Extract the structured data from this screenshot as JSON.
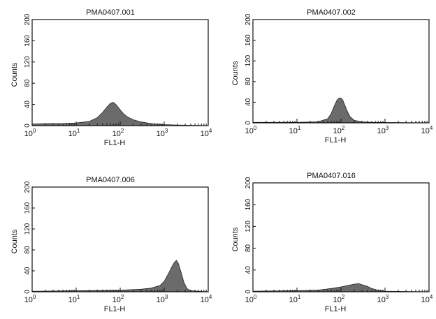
{
  "chart_data": [
    {
      "type": "area",
      "title": "PMA0407.001",
      "xlabel": "FL1-H",
      "ylabel": "Counts",
      "x_scale": "log",
      "xlim": [
        1,
        10000
      ],
      "ylim": [
        0,
        200
      ],
      "x_ticks": [
        {
          "base": "10",
          "exp": "0"
        },
        {
          "base": "10",
          "exp": "1"
        },
        {
          "base": "10",
          "exp": "2"
        },
        {
          "base": "10",
          "exp": "3"
        },
        {
          "base": "10",
          "exp": "4"
        }
      ],
      "y_ticks": [
        "0",
        "40",
        "80",
        "120",
        "160",
        "200"
      ],
      "x": [
        1,
        2,
        5,
        10,
        20,
        30,
        40,
        50,
        60,
        70,
        80,
        100,
        120,
        150,
        200,
        300,
        500,
        1000,
        2000,
        10000
      ],
      "y": [
        3,
        4,
        4,
        5,
        8,
        15,
        25,
        35,
        42,
        44,
        40,
        30,
        22,
        16,
        11,
        7,
        4,
        2,
        1,
        0
      ]
    },
    {
      "type": "area",
      "title": "PMA0407.002",
      "xlabel": "FL1-H",
      "ylabel": "Counts",
      "x_scale": "log",
      "xlim": [
        1,
        10000
      ],
      "ylim": [
        0,
        200
      ],
      "x_ticks": [
        {
          "base": "10",
          "exp": "0"
        },
        {
          "base": "10",
          "exp": "1"
        },
        {
          "base": "10",
          "exp": "2"
        },
        {
          "base": "10",
          "exp": "3"
        },
        {
          "base": "10",
          "exp": "4"
        }
      ],
      "y_ticks": [
        "0",
        "40",
        "80",
        "120",
        "160",
        "200"
      ],
      "x": [
        1,
        10,
        30,
        50,
        60,
        70,
        80,
        90,
        100,
        110,
        120,
        140,
        160,
        200,
        300,
        500,
        10000
      ],
      "y": [
        1,
        1,
        2,
        8,
        18,
        32,
        43,
        48,
        48,
        44,
        36,
        22,
        12,
        5,
        2,
        1,
        0
      ]
    },
    {
      "type": "area",
      "title": "PMA0407.006",
      "xlabel": "FL1-H",
      "ylabel": "Counts",
      "x_scale": "log",
      "xlim": [
        1,
        10000
      ],
      "ylim": [
        0,
        200
      ],
      "x_ticks": [
        {
          "base": "10",
          "exp": "0"
        },
        {
          "base": "10",
          "exp": "1"
        },
        {
          "base": "10",
          "exp": "2"
        },
        {
          "base": "10",
          "exp": "3"
        },
        {
          "base": "10",
          "exp": "4"
        }
      ],
      "y_ticks": [
        "0",
        "40",
        "80",
        "120",
        "160",
        "200"
      ],
      "x": [
        1,
        10,
        100,
        300,
        500,
        800,
        1000,
        1200,
        1500,
        1700,
        1900,
        2100,
        2400,
        2800,
        3300,
        4000,
        10000
      ],
      "y": [
        1,
        2,
        3,
        5,
        7,
        12,
        20,
        32,
        48,
        56,
        60,
        54,
        38,
        18,
        6,
        2,
        0
      ]
    },
    {
      "type": "area",
      "title": "PMA0407.016",
      "xlabel": "FL1-H",
      "ylabel": "Counts",
      "x_scale": "log",
      "xlim": [
        1,
        10000
      ],
      "ylim": [
        0,
        200
      ],
      "x_ticks": [
        {
          "base": "10",
          "exp": "0"
        },
        {
          "base": "10",
          "exp": "1"
        },
        {
          "base": "10",
          "exp": "2"
        },
        {
          "base": "10",
          "exp": "3"
        },
        {
          "base": "10",
          "exp": "4"
        }
      ],
      "y_ticks": [
        "0",
        "40",
        "80",
        "120",
        "160",
        "200"
      ],
      "x": [
        1,
        10,
        30,
        60,
        100,
        150,
        200,
        250,
        300,
        400,
        500,
        700,
        1000,
        10000
      ],
      "y": [
        1,
        2,
        3,
        6,
        9,
        12,
        14,
        15,
        13,
        10,
        6,
        3,
        1,
        0
      ]
    }
  ]
}
